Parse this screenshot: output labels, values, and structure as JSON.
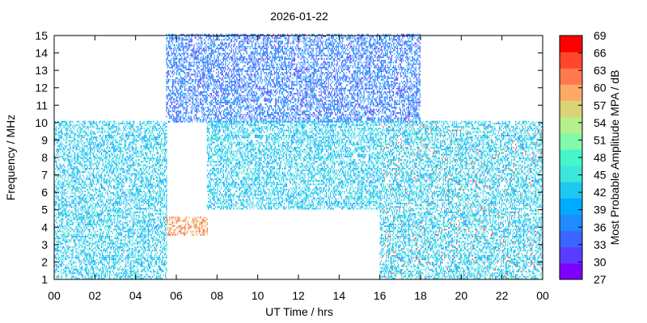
{
  "chart_data": {
    "type": "heatmap",
    "title": "2026-01-22",
    "xlabel": "UT Time / hrs",
    "ylabel": "Frequency / MHz",
    "colorbar_label": "Most Probable Amplitude MPA / dB",
    "xlim": [
      0,
      24
    ],
    "ylim": [
      1,
      15
    ],
    "x_ticks": [
      "00",
      "02",
      "04",
      "06",
      "08",
      "10",
      "12",
      "14",
      "16",
      "18",
      "20",
      "22",
      "00"
    ],
    "y_ticks": [
      "1",
      "2",
      "3",
      "4",
      "5",
      "6",
      "7",
      "8",
      "9",
      "10",
      "11",
      "12",
      "13",
      "14",
      "15"
    ],
    "colorbar": {
      "range": [
        27,
        69
      ],
      "ticks": [
        "27",
        "30",
        "33",
        "36",
        "39",
        "42",
        "45",
        "48",
        "51",
        "54",
        "57",
        "60",
        "63",
        "66",
        "69"
      ],
      "colors": [
        "#8000ff",
        "#5a3cff",
        "#3c64ff",
        "#1e8cff",
        "#00aaff",
        "#1ec8f0",
        "#3ce6dc",
        "#46f5c8",
        "#82faaa",
        "#b4f08c",
        "#dcd278",
        "#ffaa64",
        "#ff7850",
        "#ff4628",
        "#ff0000"
      ]
    },
    "grid": false,
    "series_regions": [
      {
        "x": [
          0.0,
          5.5
        ],
        "y": [
          1.0,
          10.0
        ],
        "typical_db": 42,
        "note_values_db": [
          36,
          45,
          51
        ]
      },
      {
        "x": [
          5.5,
          18.0
        ],
        "y": [
          10.0,
          15.0
        ],
        "typical_db": 36,
        "note_values_db": [
          27,
          30,
          33,
          36
        ]
      },
      {
        "x": [
          7.5,
          16.0
        ],
        "y": [
          5.0,
          10.0
        ],
        "typical_db": 42,
        "note_values_db": [
          36,
          45,
          48
        ]
      },
      {
        "x": [
          16.0,
          24.0
        ],
        "y": [
          1.0,
          10.0
        ],
        "typical_db": 42,
        "note_values_db": [
          45,
          51,
          66
        ]
      },
      {
        "x": [
          5.5,
          7.5
        ],
        "y": [
          3.5,
          4.5
        ],
        "typical_db": 60,
        "note_values_db": [
          57,
          66
        ]
      }
    ]
  }
}
